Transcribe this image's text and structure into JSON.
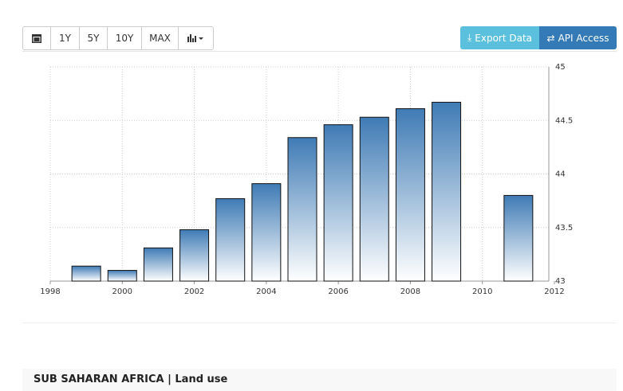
{
  "toolbar": {
    "ranges": [
      "1Y",
      "5Y",
      "10Y",
      "MAX"
    ],
    "export": "Export Data",
    "api": "API Access"
  },
  "chart_data": {
    "type": "bar",
    "x": [
      1999,
      2000,
      2001,
      2002,
      2003,
      2004,
      2005,
      2006,
      2007,
      2008,
      2009,
      2011
    ],
    "values": [
      43.14,
      43.1,
      43.31,
      43.48,
      43.77,
      43.91,
      44.34,
      44.46,
      44.53,
      44.61,
      44.67,
      43.8
    ],
    "color": "#3f7bb5",
    "xlim": [
      1998,
      2012
    ],
    "xticks": [
      1998,
      2000,
      2002,
      2004,
      2006,
      2008,
      2010,
      2012
    ],
    "ylim": [
      43,
      45
    ],
    "yticks": [
      43,
      43.5,
      44,
      44.5,
      45
    ],
    "grid": true
  },
  "footer": {
    "title": "SUB SAHARAN AFRICA | Land use"
  }
}
